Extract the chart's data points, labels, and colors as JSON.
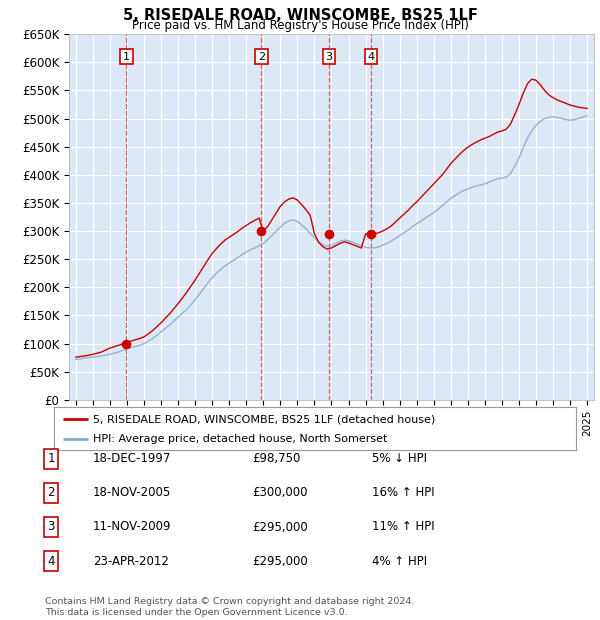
{
  "title": "5, RISEDALE ROAD, WINSCOMBE, BS25 1LF",
  "subtitle": "Price paid vs. HM Land Registry's House Price Index (HPI)",
  "ylim": [
    0,
    650000
  ],
  "yticks": [
    0,
    50000,
    100000,
    150000,
    200000,
    250000,
    300000,
    350000,
    400000,
    450000,
    500000,
    550000,
    600000,
    650000
  ],
  "ytick_labels": [
    "£0",
    "£50K",
    "£100K",
    "£150K",
    "£200K",
    "£250K",
    "£300K",
    "£350K",
    "£400K",
    "£450K",
    "£500K",
    "£550K",
    "£600K",
    "£650K"
  ],
  "xlim_start": 1994.6,
  "xlim_end": 2025.4,
  "bg_color": "#dce8f5",
  "grid_color": "#ffffff",
  "red_line_color": "#cc0000",
  "blue_line_color": "#88aacc",
  "sale_marker_color": "#cc0000",
  "sale_years": [
    1997.96,
    2005.88,
    2009.86,
    2012.31
  ],
  "sale_prices": [
    98750,
    300000,
    295000,
    295000
  ],
  "sale_labels": [
    "1",
    "2",
    "3",
    "4"
  ],
  "legend_line1": "5, RISEDALE ROAD, WINSCOMBE, BS25 1LF (detached house)",
  "legend_line2": "HPI: Average price, detached house, North Somerset",
  "footnote": "Contains HM Land Registry data © Crown copyright and database right 2024.\nThis data is licensed under the Open Government Licence v3.0.",
  "table_rows": [
    [
      "1",
      "18-DEC-1997",
      "£98,750",
      "5% ↓ HPI"
    ],
    [
      "2",
      "18-NOV-2005",
      "£300,000",
      "16% ↑ HPI"
    ],
    [
      "3",
      "11-NOV-2009",
      "£295,000",
      "11% ↑ HPI"
    ],
    [
      "4",
      "23-APR-2012",
      "£295,000",
      "4% ↑ HPI"
    ]
  ],
  "years_hpi": [
    1995.0,
    1995.25,
    1995.5,
    1995.75,
    1996.0,
    1996.25,
    1996.5,
    1996.75,
    1997.0,
    1997.25,
    1997.5,
    1997.75,
    1998.0,
    1998.25,
    1998.5,
    1998.75,
    1999.0,
    1999.25,
    1999.5,
    1999.75,
    2000.0,
    2000.25,
    2000.5,
    2000.75,
    2001.0,
    2001.25,
    2001.5,
    2001.75,
    2002.0,
    2002.25,
    2002.5,
    2002.75,
    2003.0,
    2003.25,
    2003.5,
    2003.75,
    2004.0,
    2004.25,
    2004.5,
    2004.75,
    2005.0,
    2005.25,
    2005.5,
    2005.75,
    2006.0,
    2006.25,
    2006.5,
    2006.75,
    2007.0,
    2007.25,
    2007.5,
    2007.75,
    2008.0,
    2008.25,
    2008.5,
    2008.75,
    2009.0,
    2009.25,
    2009.5,
    2009.75,
    2010.0,
    2010.25,
    2010.5,
    2010.75,
    2011.0,
    2011.25,
    2011.5,
    2011.75,
    2012.0,
    2012.25,
    2012.5,
    2012.75,
    2013.0,
    2013.25,
    2013.5,
    2013.75,
    2014.0,
    2014.25,
    2014.5,
    2014.75,
    2015.0,
    2015.25,
    2015.5,
    2015.75,
    2016.0,
    2016.25,
    2016.5,
    2016.75,
    2017.0,
    2017.25,
    2017.5,
    2017.75,
    2018.0,
    2018.25,
    2018.5,
    2018.75,
    2019.0,
    2019.25,
    2019.5,
    2019.75,
    2020.0,
    2020.25,
    2020.5,
    2020.75,
    2021.0,
    2021.25,
    2021.5,
    2021.75,
    2022.0,
    2022.25,
    2022.5,
    2022.75,
    2023.0,
    2023.25,
    2023.5,
    2023.75,
    2024.0,
    2024.25,
    2024.5,
    2024.75,
    2025.0
  ],
  "hpi_values": [
    72000,
    73000,
    74000,
    75000,
    76000,
    77000,
    78000,
    79500,
    81000,
    83000,
    85000,
    88000,
    91000,
    93000,
    95000,
    97000,
    100000,
    104000,
    109000,
    115000,
    121000,
    127000,
    133000,
    140000,
    147000,
    154000,
    161000,
    169000,
    178000,
    188000,
    198000,
    208000,
    217000,
    225000,
    232000,
    238000,
    243000,
    248000,
    253000,
    258000,
    263000,
    267000,
    270000,
    274000,
    278000,
    285000,
    292000,
    300000,
    307000,
    314000,
    318000,
    320000,
    317000,
    311000,
    304000,
    296000,
    288000,
    281000,
    276000,
    273000,
    274000,
    278000,
    282000,
    284000,
    283000,
    280000,
    277000,
    274000,
    271000,
    270000,
    270000,
    272000,
    275000,
    278000,
    282000,
    287000,
    292000,
    297000,
    302000,
    308000,
    313000,
    318000,
    323000,
    328000,
    333000,
    339000,
    345000,
    352000,
    358000,
    363000,
    368000,
    372000,
    375000,
    378000,
    380000,
    382000,
    384000,
    387000,
    390000,
    393000,
    394000,
    396000,
    402000,
    415000,
    430000,
    448000,
    465000,
    478000,
    488000,
    495000,
    500000,
    502000,
    503000,
    502000,
    500000,
    498000,
    497000,
    498000,
    500000,
    503000,
    505000
  ],
  "red_values": [
    76000,
    77000,
    78000,
    79500,
    81000,
    83000,
    85000,
    88500,
    92000,
    94500,
    97000,
    99500,
    102000,
    104500,
    107000,
    109000,
    112000,
    117000,
    123000,
    130000,
    137000,
    145000,
    153000,
    162000,
    171000,
    181000,
    191000,
    202000,
    213000,
    225000,
    237000,
    249000,
    260000,
    269000,
    277000,
    284000,
    289000,
    294000,
    299000,
    305000,
    310000,
    315000,
    319000,
    323000,
    300000,
    308000,
    320000,
    332000,
    344000,
    352000,
    357000,
    359000,
    355000,
    347000,
    338000,
    328000,
    295000,
    280000,
    272000,
    268000,
    270000,
    274000,
    278000,
    281000,
    279000,
    276000,
    273000,
    270000,
    295000,
    294000,
    295000,
    297000,
    300000,
    304000,
    309000,
    316000,
    323000,
    330000,
    337000,
    345000,
    352000,
    360000,
    368000,
    376000,
    384000,
    392000,
    400000,
    410000,
    420000,
    428000,
    436000,
    443000,
    449000,
    454000,
    458000,
    462000,
    465000,
    468000,
    472000,
    476000,
    478000,
    481000,
    490000,
    507000,
    525000,
    545000,
    562000,
    570000,
    568000,
    560000,
    550000,
    542000,
    537000,
    533000,
    530000,
    527000,
    524000,
    522000,
    520000,
    519000,
    518000
  ]
}
